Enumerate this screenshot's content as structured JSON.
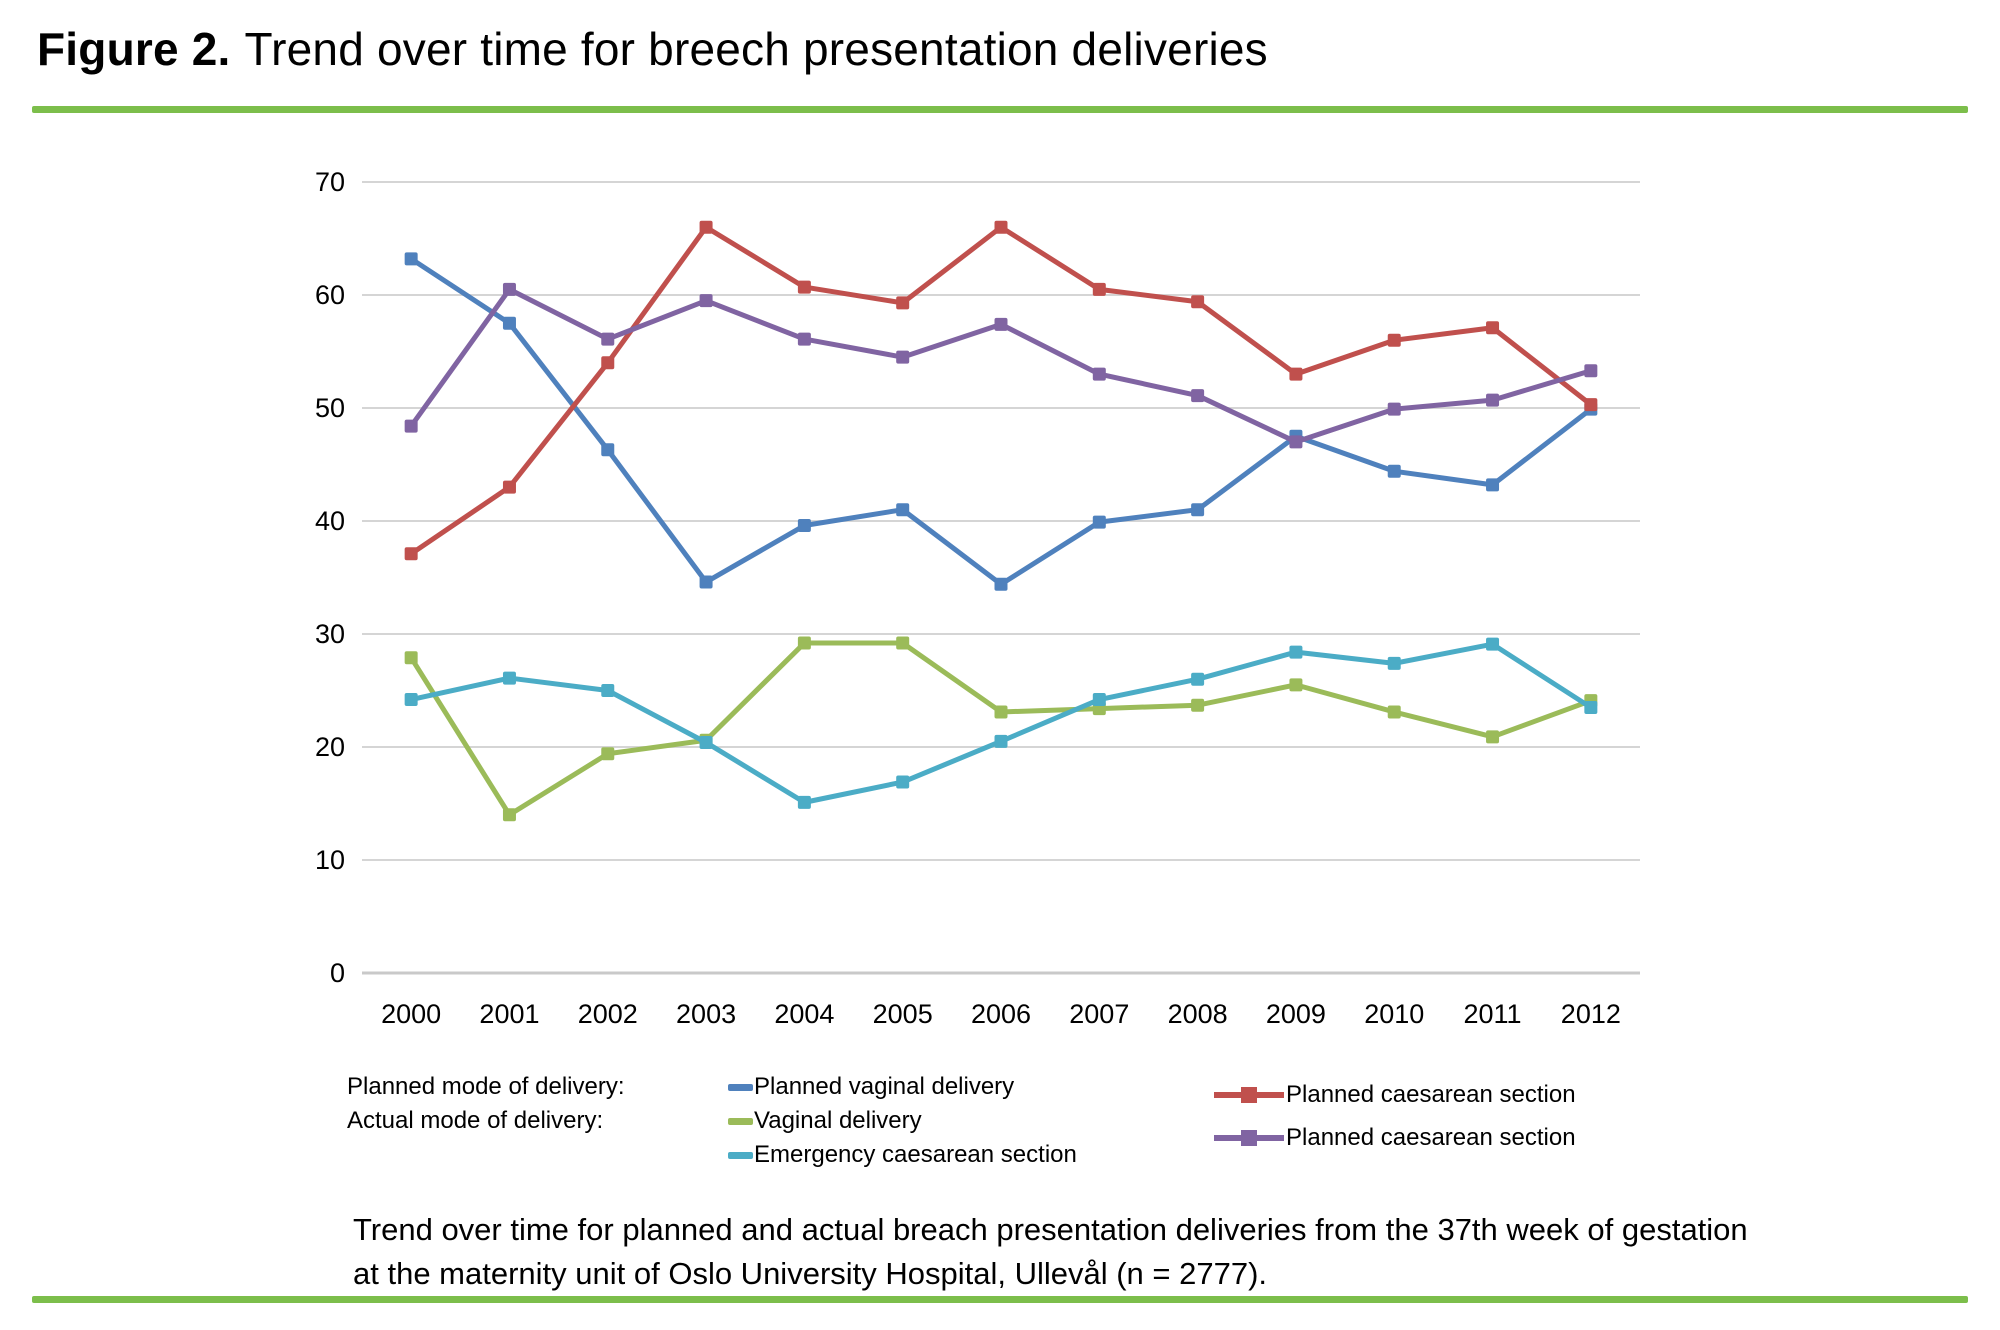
{
  "figure": {
    "label": "Figure 2.",
    "title_rest": "Trend over time for breech presentation deliveries"
  },
  "colors": {
    "divider_green": "#7CBE4B",
    "gridline": "#D5D5D5",
    "axis_line": "#C9C9C9"
  },
  "chart_data": {
    "type": "line",
    "x": [
      2000,
      2001,
      2002,
      2003,
      2004,
      2005,
      2006,
      2007,
      2008,
      2009,
      2010,
      2011,
      2012
    ],
    "ylim": [
      0,
      70
    ],
    "ytick_step": 10,
    "grid": true,
    "legend_position": "bottom",
    "title": "",
    "xlabel": "",
    "ylabel": "",
    "marker": "square",
    "series": [
      {
        "name": "Planned vaginal delivery",
        "group": "Planned mode of delivery",
        "color": "#4F81BD",
        "values": [
          63.2,
          57.5,
          46.3,
          34.6,
          39.6,
          41.0,
          34.4,
          39.9,
          41.0,
          47.5,
          44.4,
          43.2,
          49.9
        ]
      },
      {
        "name": "Planned caesarean section",
        "group": "Planned mode of delivery",
        "color": "#C0504D",
        "values": [
          37.1,
          43.0,
          54.0,
          66.0,
          60.7,
          59.3,
          66.0,
          60.5,
          59.4,
          53.0,
          56.0,
          57.1,
          50.3
        ]
      },
      {
        "name": "Vaginal delivery",
        "group": "Actual mode of delivery",
        "color": "#9BBB59",
        "values": [
          27.9,
          14.0,
          19.4,
          20.6,
          29.2,
          29.2,
          23.1,
          23.4,
          23.7,
          25.5,
          23.1,
          20.9,
          24.1
        ]
      },
      {
        "name": "Planned caesarean section",
        "group": "Actual mode of delivery",
        "color": "#8064A2",
        "values": [
          48.4,
          60.5,
          56.1,
          59.5,
          56.1,
          54.5,
          57.4,
          53.0,
          51.1,
          47.0,
          49.9,
          50.7,
          53.3
        ]
      },
      {
        "name": "Emergency caesarean section",
        "group": "Actual mode of delivery",
        "color": "#4BACC6",
        "values": [
          24.2,
          26.1,
          25.0,
          20.4,
          15.1,
          16.9,
          20.5,
          24.2,
          26.0,
          28.4,
          27.4,
          29.1,
          23.5
        ]
      }
    ]
  },
  "legend": {
    "left_labels": [
      "Planned mode of delivery:",
      "Actual mode of delivery:"
    ],
    "middle_items": [
      {
        "label": "Planned vaginal delivery",
        "color": "#4F81BD"
      },
      {
        "label": "Vaginal delivery",
        "color": "#9BBB59"
      },
      {
        "label": "Emergency caesarean section",
        "color": "#4BACC6"
      }
    ],
    "right_items": [
      {
        "label": "Planned caesarean section",
        "color": "#C0504D"
      },
      {
        "label": "Planned caesarean section",
        "color": "#8064A2"
      }
    ]
  },
  "caption": {
    "line1": "Trend over time for planned and actual breach presentation deliveries from the 37th week of gestation",
    "line2": "at the maternity unit of Oslo University Hospital, Ullevål (n = 2777)."
  }
}
